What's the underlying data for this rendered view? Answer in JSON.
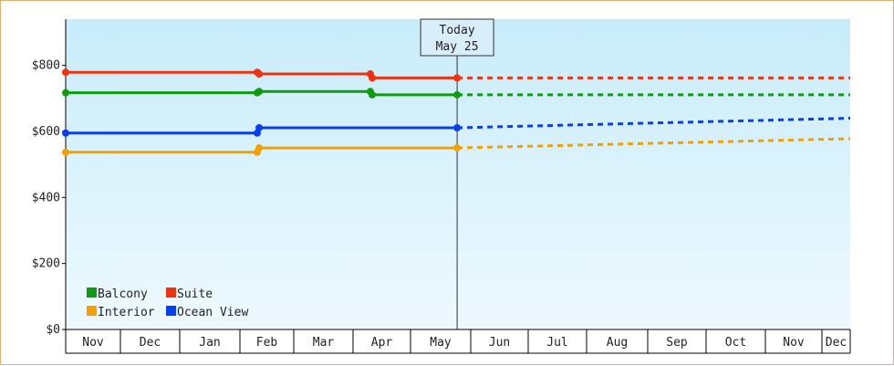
{
  "chart_data": {
    "type": "line",
    "y_tick_labels": [
      "$0",
      "$200",
      "$400",
      "$600",
      "$800"
    ],
    "ylim": [
      0,
      940
    ],
    "months": [
      "Nov",
      "Dec",
      "Jan",
      "Feb",
      "Mar",
      "Apr",
      "May",
      "Jun",
      "Jul",
      "Aug",
      "Sep",
      "Oct",
      "Nov",
      "Dec"
    ],
    "today_label": [
      "Today",
      "May 25"
    ],
    "today_x": "May 25",
    "series": [
      {
        "name": "Balcony",
        "color": "#119911",
        "actual": [
          [
            "Nov 1",
            717
          ],
          [
            "Feb 10",
            717
          ],
          [
            "Feb 11",
            721
          ],
          [
            "Apr 10",
            721
          ],
          [
            "Apr 11",
            711
          ],
          [
            "May 25",
            711
          ]
        ],
        "forecast": [
          [
            "May 25",
            711
          ],
          [
            "Dec 31",
            711
          ]
        ]
      },
      {
        "name": "Suite",
        "color": "#ee3311",
        "actual": [
          [
            "Nov 1",
            779
          ],
          [
            "Feb 10",
            779
          ],
          [
            "Feb 11",
            774
          ],
          [
            "Apr 10",
            774
          ],
          [
            "Apr 11",
            762
          ],
          [
            "May 25",
            762
          ]
        ],
        "forecast": [
          [
            "May 25",
            762
          ],
          [
            "Dec 31",
            762
          ]
        ]
      },
      {
        "name": "Interior",
        "color": "#f4a000",
        "actual": [
          [
            "Nov 1",
            537
          ],
          [
            "Feb 10",
            537
          ],
          [
            "Feb 11",
            550
          ],
          [
            "May 25",
            550
          ]
        ],
        "forecast": [
          [
            "May 25",
            550
          ],
          [
            "Dec 31",
            578
          ]
        ]
      },
      {
        "name": "Ocean View",
        "color": "#0a3ff0",
        "actual": [
          [
            "Nov 1",
            595
          ],
          [
            "Feb 10",
            595
          ],
          [
            "Feb 11",
            611
          ],
          [
            "May 25",
            611
          ]
        ],
        "forecast": [
          [
            "May 25",
            611
          ],
          [
            "Dec 31",
            640
          ]
        ]
      }
    ],
    "legend_placement": "bottom-left",
    "grid": false
  }
}
